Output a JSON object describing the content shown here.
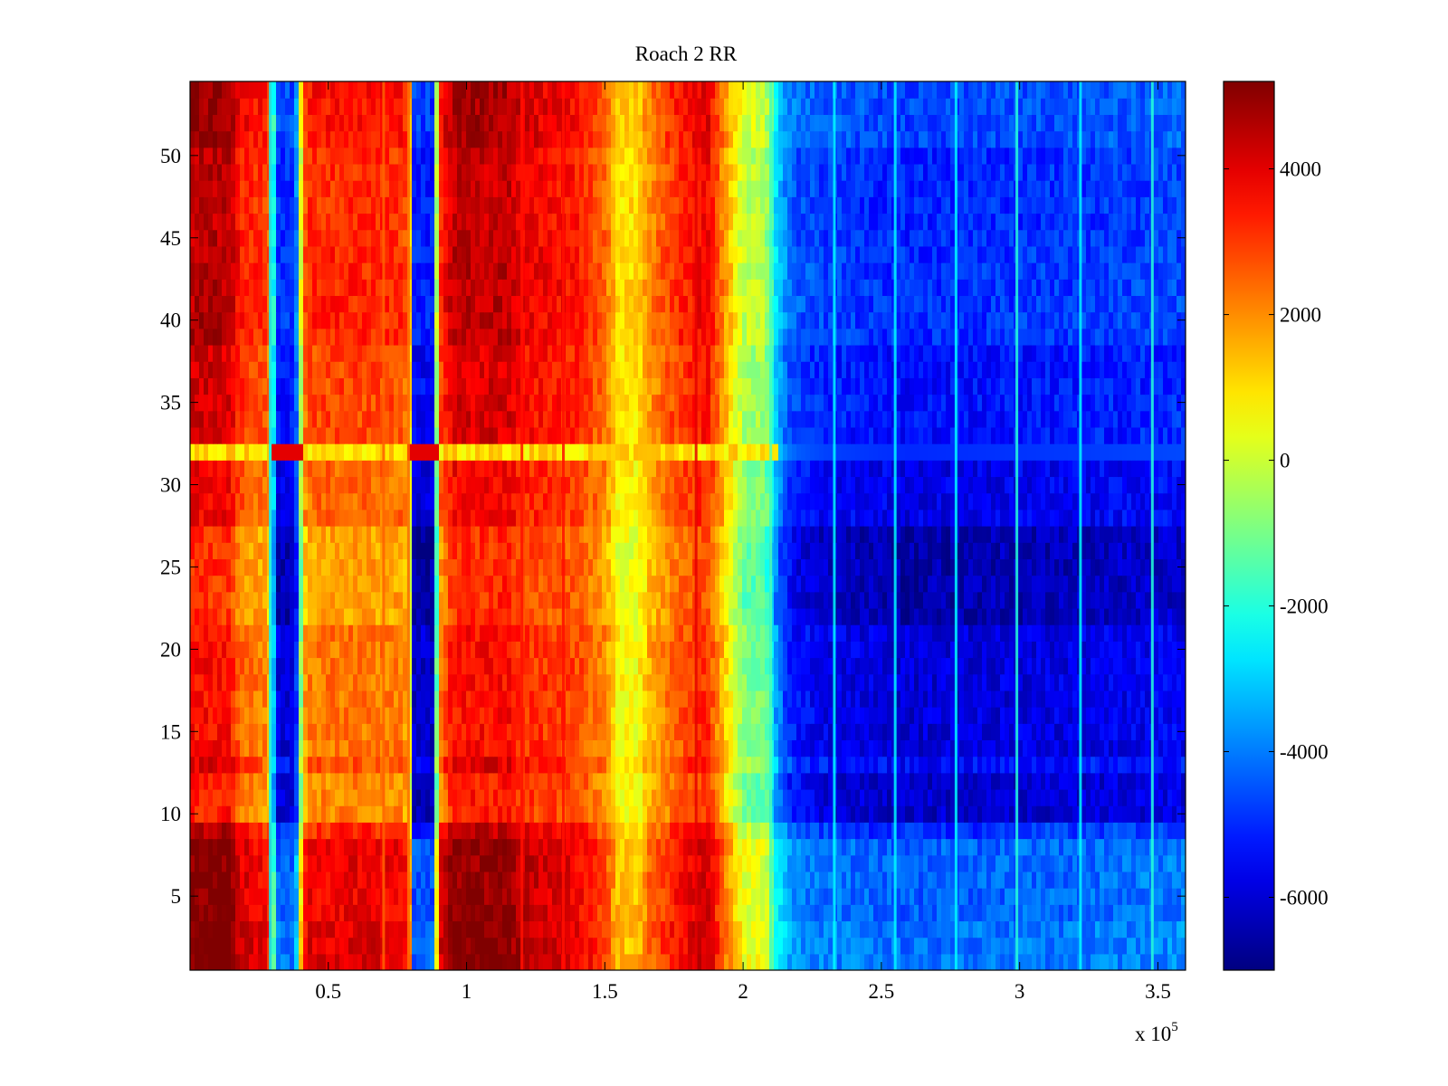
{
  "chart_data": {
    "type": "heatmap",
    "title": "Roach 2 RR",
    "xlabel": "",
    "ylabel": "",
    "x_multiplier_label": "x 10",
    "x_multiplier_exponent": "5",
    "xlim": [
      0,
      3.6
    ],
    "ylim": [
      0.5,
      54.5
    ],
    "x_ticks": [
      0.5,
      1,
      1.5,
      2,
      2.5,
      3,
      3.5
    ],
    "x_tick_labels": [
      "0.5",
      "1",
      "1.5",
      "2",
      "2.5",
      "3",
      "3.5"
    ],
    "y_ticks": [
      5,
      10,
      15,
      20,
      25,
      30,
      35,
      40,
      45,
      50
    ],
    "y_tick_labels": [
      "5",
      "10",
      "15",
      "20",
      "25",
      "30",
      "35",
      "40",
      "45",
      "50"
    ],
    "rows": 54,
    "colormap": "jet",
    "colorbar": {
      "range": [
        -7000,
        5200
      ],
      "ticks": [
        -6000,
        -4000,
        -2000,
        0,
        2000,
        4000
      ],
      "tick_labels": [
        "-6000",
        "-4000",
        "-2000",
        "0",
        "2000",
        "4000"
      ]
    },
    "column_profile": {
      "x": [
        0,
        0.14,
        0.18,
        0.27,
        0.29,
        0.31,
        0.38,
        0.41,
        0.43,
        0.55,
        0.76,
        0.79,
        0.81,
        0.88,
        0.9,
        0.95,
        1.15,
        1.2,
        1.4,
        1.5,
        1.55,
        1.62,
        1.66,
        1.75,
        1.87,
        1.95,
        2.0,
        2.08,
        2.12,
        2.16,
        2.2,
        2.3,
        2.6,
        3.2,
        3.6
      ],
      "values": [
        4300,
        4300,
        3200,
        2800,
        2200,
        -5200,
        -5200,
        2200,
        2900,
        3000,
        2900,
        2400,
        -5400,
        -5400,
        2800,
        4200,
        4200,
        3700,
        3300,
        2400,
        900,
        900,
        1900,
        2900,
        3700,
        1200,
        -300,
        -500,
        -3000,
        -4300,
        -4700,
        -5000,
        -5300,
        -5100,
        -4900
      ]
    },
    "row_offsets": [
      {
        "rows": [
          1,
          3
        ],
        "value": 1100
      },
      {
        "rows": [
          4,
          8
        ],
        "value": 900
      },
      {
        "rows": [
          9,
          9
        ],
        "value": 300
      },
      {
        "rows": [
          10,
          12
        ],
        "value": -900
      },
      {
        "rows": [
          13,
          13
        ],
        "value": -200
      },
      {
        "rows": [
          14,
          21
        ],
        "value": -700
      },
      {
        "rows": [
          22,
          27
        ],
        "value": -1200
      },
      {
        "rows": [
          28,
          31
        ],
        "value": -500
      },
      {
        "rows": [
          32,
          32
        ],
        "value": 0
      },
      {
        "rows": [
          33,
          38
        ],
        "value": -100
      },
      {
        "rows": [
          39,
          44
        ],
        "value": 300
      },
      {
        "rows": [
          45,
          50
        ],
        "value": 200
      },
      {
        "rows": [
          51,
          54
        ],
        "value": 600
      }
    ],
    "divider_row": 32,
    "divider_value": 1000,
    "vertical_streaks": [
      {
        "x": 0.29,
        "value": -2500
      },
      {
        "x": 0.7,
        "value": 2500
      },
      {
        "x": 0.79,
        "value": 2500
      },
      {
        "x": 1.2,
        "value": 3500
      },
      {
        "x": 1.35,
        "value": 3500
      },
      {
        "x": 1.83,
        "value": 4000
      },
      {
        "x": 2.1,
        "value": -1500
      },
      {
        "x": 2.33,
        "value": -2500
      },
      {
        "x": 2.55,
        "value": -2500
      },
      {
        "x": 2.77,
        "value": -2500
      },
      {
        "x": 2.99,
        "value": -2000
      },
      {
        "x": 3.22,
        "value": -2500
      },
      {
        "x": 3.48,
        "value": -2000
      }
    ]
  }
}
